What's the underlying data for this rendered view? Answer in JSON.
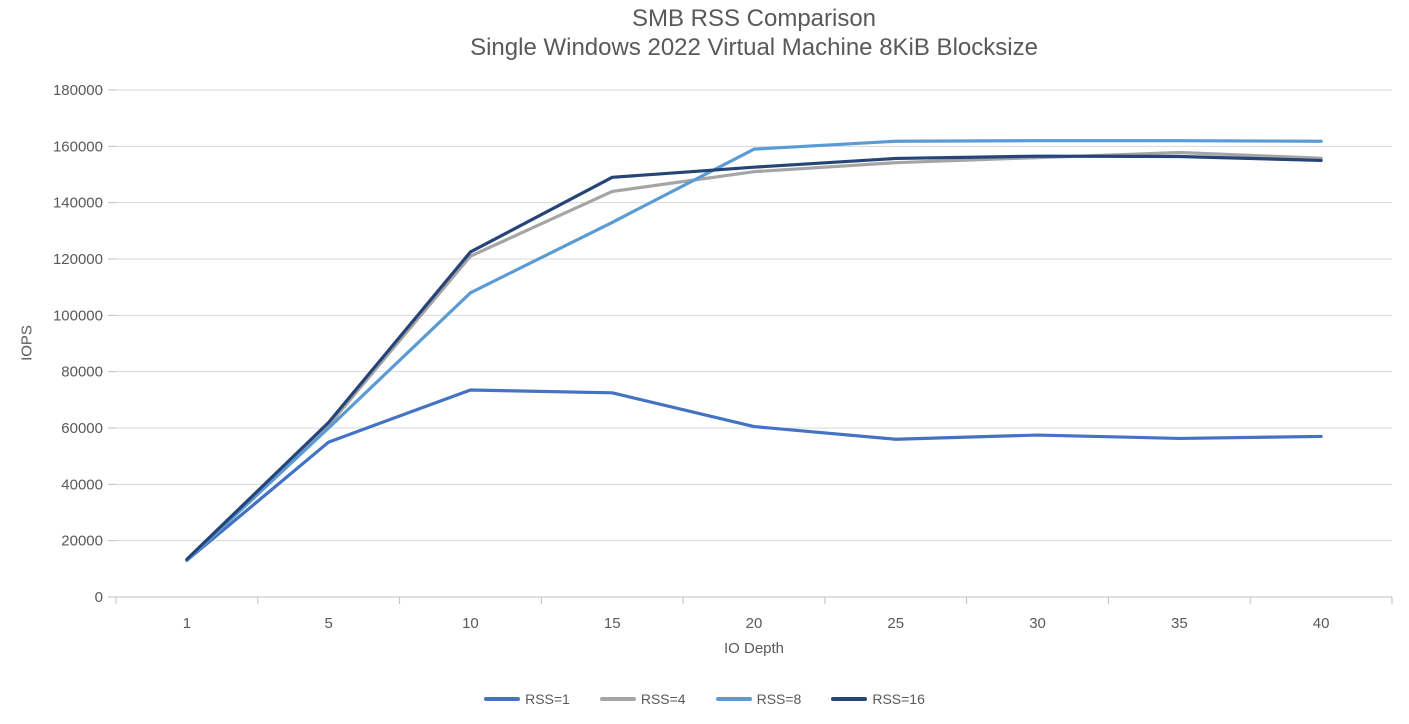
{
  "chart_data": {
    "type": "line",
    "title": "SMB RSS Comparison",
    "subtitle": "Single Windows 2022 Virtual Machine 8KiB Blocksize",
    "xlabel": "IO Depth",
    "ylabel": "IOPS",
    "categories": [
      1,
      5,
      10,
      15,
      20,
      25,
      30,
      35,
      40
    ],
    "series": [
      {
        "name": "RSS=1",
        "color": "#4472C4",
        "values": [
          13000,
          55000,
          73500,
          72500,
          60500,
          56000,
          57500,
          56300,
          57000
        ]
      },
      {
        "name": "RSS=4",
        "color": "#A5A5A5",
        "values": [
          13000,
          61000,
          121000,
          144000,
          151000,
          154200,
          156000,
          157800,
          155800
        ]
      },
      {
        "name": "RSS=8",
        "color": "#5B9BD5",
        "values": [
          13000,
          60000,
          108000,
          133000,
          159000,
          161800,
          162000,
          162000,
          161800
        ]
      },
      {
        "name": "RSS=16",
        "color": "#264478",
        "values": [
          13400,
          62000,
          122500,
          149000,
          152600,
          155700,
          156500,
          156400,
          155000
        ]
      }
    ],
    "ylim": [
      0,
      180000
    ],
    "ytick_step": 20000,
    "grid": "horizontal",
    "legend_position": "bottom",
    "theme": {
      "grid_color": "#d9d9d9",
      "axis_color": "#bfbfbf",
      "text_color": "#595959",
      "background": "#ffffff"
    }
  }
}
